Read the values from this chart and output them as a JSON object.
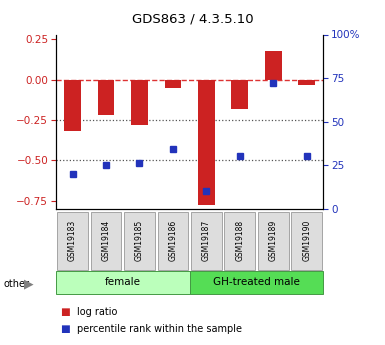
{
  "title": "GDS863 / 4.3.5.10",
  "samples": [
    "GSM19183",
    "GSM19184",
    "GSM19185",
    "GSM19186",
    "GSM19187",
    "GSM19188",
    "GSM19189",
    "GSM19190"
  ],
  "log_ratio": [
    -0.32,
    -0.22,
    -0.28,
    -0.05,
    -0.78,
    -0.18,
    0.18,
    -0.03
  ],
  "percentile": [
    20,
    25,
    26,
    34,
    10,
    30,
    72,
    30
  ],
  "groups": [
    {
      "label": "female",
      "start": 0,
      "end": 4,
      "color": "#bbffbb"
    },
    {
      "label": "GH-treated male",
      "start": 4,
      "end": 8,
      "color": "#55dd55"
    }
  ],
  "ylim_left": [
    -0.8,
    0.28
  ],
  "ylim_right": [
    0,
    100
  ],
  "left_ticks": [
    0.25,
    0,
    -0.25,
    -0.5,
    -0.75
  ],
  "right_ticks": [
    100,
    75,
    50,
    25,
    0
  ],
  "bar_color": "#cc2222",
  "dot_color": "#2233bb",
  "hline_zero_color": "#dd3333",
  "hline_dotted_color": "#555555",
  "bar_width": 0.5,
  "legend_items": [
    "log ratio",
    "percentile rank within the sample"
  ]
}
